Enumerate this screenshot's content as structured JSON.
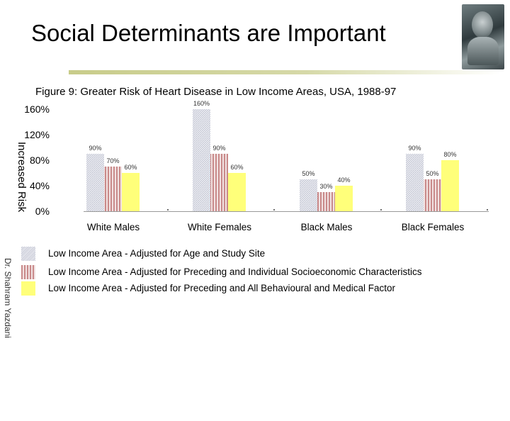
{
  "slide": {
    "title": "Social Determinants are Important",
    "author": "Dr. Shahram Yazdani"
  },
  "chart_data": {
    "type": "bar",
    "title": "Figure 9: Greater Risk of Heart Disease in Low Income Areas, USA, 1988-97",
    "ylabel": "Increased Risk",
    "ylim": [
      0,
      160
    ],
    "yticks": [
      "0%",
      "40%",
      "80%",
      "120%",
      "160%"
    ],
    "categories": [
      "White Males",
      "White Females",
      "Black Males",
      "Black Females"
    ],
    "series": [
      {
        "name": "Low Income Area - Adjusted for Age and Study Site",
        "values": [
          90,
          160,
          50,
          90
        ],
        "labels": [
          "90%",
          "160%",
          "50%",
          "90%"
        ]
      },
      {
        "name": "Low Income Area - Adjusted for Preceding and Individual Socioeconomic Characteristics",
        "values": [
          70,
          90,
          30,
          50
        ],
        "labels": [
          "70%",
          "90%",
          "30%",
          "50%"
        ]
      },
      {
        "name": "Low Income Area - Adjusted for Preceding and All Behavioural and Medical Factor",
        "values": [
          60,
          60,
          40,
          80
        ],
        "labels": [
          "60%",
          "60%",
          "40%",
          "80%"
        ]
      }
    ],
    "colors": [
      "#dcdde6",
      "#d9a8a8",
      "#ffff7a"
    ],
    "legend_position": "bottom",
    "grid": false
  }
}
